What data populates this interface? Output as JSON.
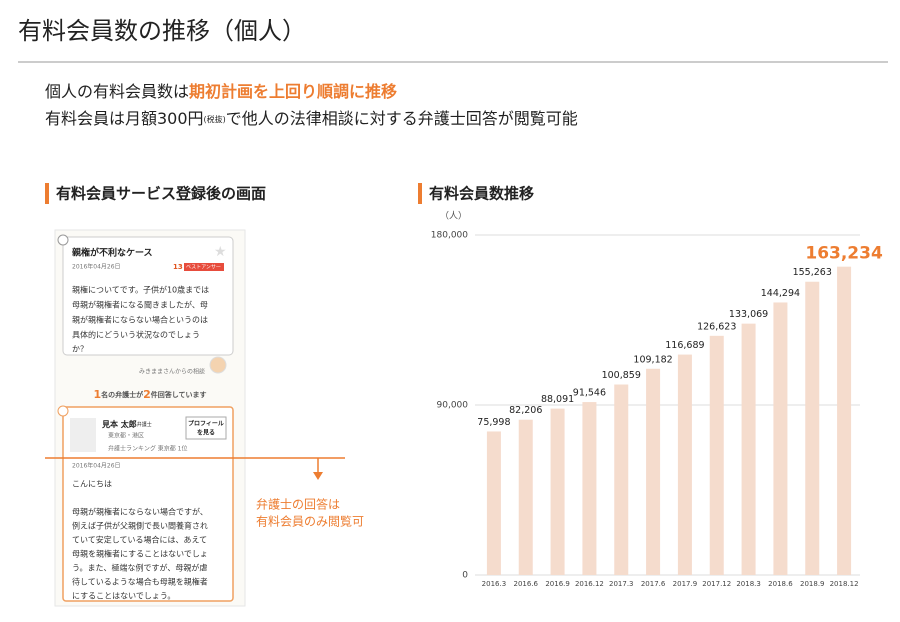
{
  "header": {
    "title": "有料会員数の推移（個人）"
  },
  "summary": {
    "line1": {
      "text": "個人の有料会員数は",
      "highlight": "期初計画を上回り順調に推移"
    },
    "line2": {
      "before": "有料会員は月額300円",
      "note": "(税抜)",
      "after": "で他人の法律相談に対する弁護士回答が閲覧可能"
    }
  },
  "screen_section": {
    "title": "有料会員サービス登録後の画面",
    "mockup": {
      "question_title": "親権が不利なケース",
      "question_date": "2016年04月26日",
      "helpful_count": "13",
      "best_answer": "ベストアンサー",
      "question_lines": [
        "親権についてです。子供が10歳までは",
        "母親が親権者になる聞きましたが、母",
        "親が親権者にならない場合というのは",
        "具体的にどういう状況なのでしょう",
        "か？"
      ],
      "asker": "みきままさんからの相談",
      "answer_count": {
        "lawyers": "1",
        "lawyers_text": "名の弁護士が",
        "answers": "2",
        "answers_text": "件回答しています"
      },
      "lawyer_name": "見本 太郎",
      "lawyer_title": "弁護士",
      "lawyer_location": "東京都・港区",
      "lawyer_rank": "弁護士ランキング 東京都 1位",
      "profile_button": [
        "プロフィール",
        "を見る"
      ],
      "answer_date": "2016年04月26日",
      "greeting": "こんにちは",
      "answer_lines": [
        "母親が親権者にならない場合ですが、",
        "例えば子供が父親側で長い間養育され",
        "ていて安定している場合には、あえて",
        "母親を親権者にすることはないでしょ",
        "う。また、極端な例ですが、母親が虐",
        "待しているような場合も母親を親権者",
        "にすることはないでしょう。"
      ]
    },
    "annotation": [
      "弁護士の回答は",
      "有料会員のみ閲覧可"
    ]
  },
  "chart_data": {
    "type": "bar",
    "title": "有料会員数推移",
    "y_unit": "（人）",
    "categories": [
      "2016.3",
      "2016.6",
      "2016.9",
      "2016.12",
      "2017.3",
      "2017.6",
      "2017.9",
      "2017.12",
      "2018.3",
      "2018.6",
      "2018.9",
      "2018.12"
    ],
    "values": [
      75998,
      82206,
      88091,
      91546,
      100859,
      109182,
      116689,
      126623,
      133069,
      144294,
      155263,
      163234
    ],
    "value_labels": [
      "75,998",
      "82,206",
      "88,091",
      "91,546",
      "100,859",
      "109,182",
      "116,689",
      "126,623",
      "133,069",
      "144,294",
      "155,263",
      "163,234"
    ],
    "color": "#f5dccd",
    "highlight_color": "#ed7d31",
    "ylim": [
      0,
      180000
    ],
    "yticks": [
      {
        "value": 0,
        "label": "0"
      },
      {
        "value": 90000,
        "label": "90,000"
      },
      {
        "value": 180000,
        "label": "180,000"
      }
    ],
    "grid": true
  }
}
